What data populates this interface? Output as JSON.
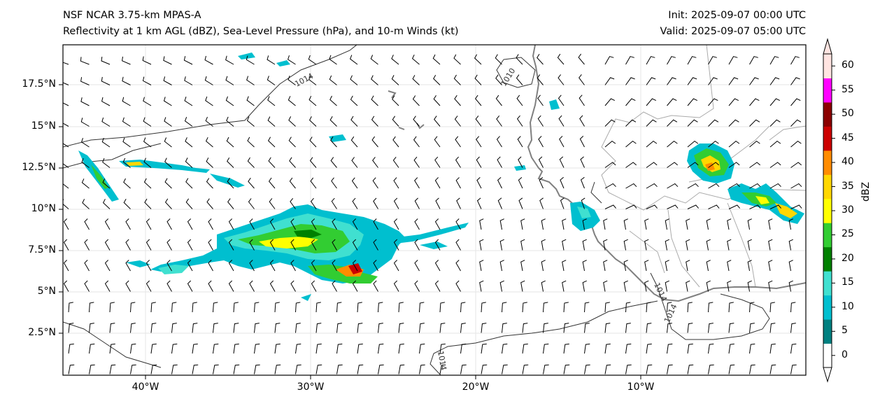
{
  "header": {
    "model": "NSF NCAR 3.75-km MPAS-A",
    "fields": "Reflectivity at 1 km AGL (dBZ), Sea-Level Pressure (hPa), and 10-m Winds (kt)",
    "init": "Init: 2025-09-07 00:00 UTC",
    "valid": "Valid: 2025-09-07 05:00 UTC"
  },
  "axes": {
    "lat_labels": [
      "17.5°N",
      "15°N",
      "12.5°N",
      "10°N",
      "7.5°N",
      "5°N",
      "2.5°N"
    ],
    "lon_labels": [
      "40°W",
      "30°W",
      "20°W",
      "10°W"
    ]
  },
  "colorbar": {
    "title": "dBZ",
    "ticks": [
      "0",
      "5",
      "10",
      "15",
      "20",
      "25",
      "30",
      "35",
      "40",
      "45",
      "50",
      "55",
      "60"
    ],
    "colors": [
      "#ffffff",
      "#008080",
      "#00bfcf",
      "#40e0d0",
      "#008000",
      "#32cd32",
      "#ffff00",
      "#ffd700",
      "#ff8c00",
      "#cc0000",
      "#8b0000",
      "#ff00ff",
      "#ffe4e1"
    ]
  },
  "isobars": {
    "labels": [
      "1014",
      "1010",
      "1014",
      "1014",
      "1014"
    ],
    "color": "#333333"
  },
  "map_colors": {
    "coastline": "#808080",
    "borders": "#aaaaaa",
    "barb": "#000000"
  }
}
